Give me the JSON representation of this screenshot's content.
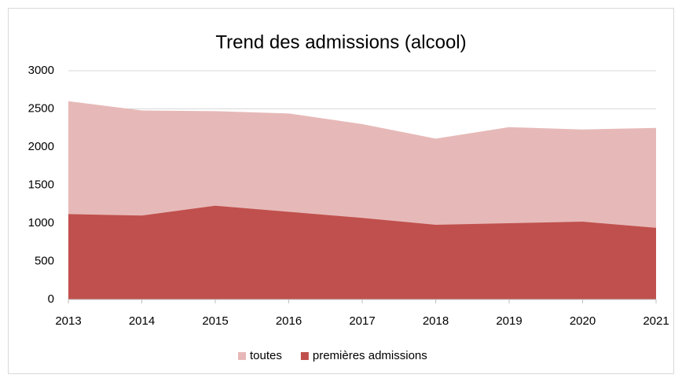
{
  "chart_data": {
    "type": "area",
    "title": "Trend des admissions (alcool)",
    "categories": [
      "2013",
      "2014",
      "2015",
      "2016",
      "2017",
      "2018",
      "2019",
      "2020",
      "2021"
    ],
    "series": [
      {
        "name": "toutes",
        "color": "#e6b9b8",
        "values": [
          2600,
          2480,
          2470,
          2440,
          2300,
          2110,
          2260,
          2230,
          2250
        ]
      },
      {
        "name": "premières admissions",
        "color": "#c0504d",
        "values": [
          1120,
          1100,
          1230,
          1150,
          1070,
          980,
          1000,
          1020,
          940
        ]
      }
    ],
    "ylim": [
      0,
      3000
    ],
    "yticks": [
      0,
      500,
      1000,
      1500,
      2000,
      2500,
      3000
    ],
    "grid": true,
    "legend": "bottom"
  }
}
